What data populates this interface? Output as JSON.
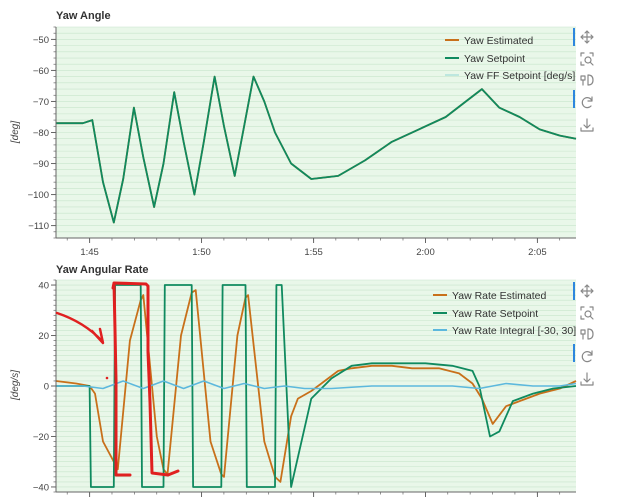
{
  "colors": {
    "plot_bg": "#e9f7e9",
    "grid": "#c8e6cc",
    "axis": "#666666",
    "orange": "#c8701a",
    "green": "#0f8a5f",
    "lightblue": "#5cb8dd",
    "ff_faint": "#bde7df",
    "red_annotation": "#e02020",
    "toolbar_accent": "#2e86de"
  },
  "toolbar": {
    "icons": [
      "pan-icon",
      "box-zoom-icon",
      "hover-icon",
      "reset-icon",
      "save-icon"
    ]
  },
  "chart_data": [
    {
      "type": "line",
      "title": "Yaw Angle",
      "ylabel": "[deg]",
      "xlabel": "",
      "x_tick_labels": [
        "1:45",
        "1:50",
        "1:55",
        "2:00",
        "2:05"
      ],
      "x_tick_minutes": [
        1.75,
        1.8333,
        1.9167,
        2.0,
        2.0833
      ],
      "xlim": [
        1.725,
        2.112
      ],
      "ylim": [
        -114,
        -46
      ],
      "y_ticks": [
        -50,
        -60,
        -70,
        -80,
        -90,
        -100,
        -110
      ],
      "legend_position": "top-right",
      "series": [
        {
          "name": "Yaw Estimated",
          "color": "#c8701a",
          "x": [
            1.725,
            1.745,
            1.752,
            1.76,
            1.768,
            1.775,
            1.783,
            1.79,
            1.798,
            1.805,
            1.813,
            1.82,
            1.828,
            1.835,
            1.843,
            1.85,
            1.858,
            1.865,
            1.872,
            1.88,
            1.888,
            1.9,
            1.915,
            1.935,
            1.955,
            1.975,
            1.995,
            2.015,
            2.03,
            2.042,
            2.055,
            2.07,
            2.085,
            2.1,
            2.112
          ],
          "y": [
            -77,
            -77,
            -76,
            -96,
            -109,
            -95,
            -72,
            -88,
            -104,
            -90,
            -67,
            -83,
            -100,
            -83,
            -62,
            -78,
            -94,
            -78,
            -62,
            -70,
            -80,
            -90,
            -95,
            -94,
            -89,
            -83,
            -79,
            -75,
            -70,
            -66,
            -72,
            -75,
            -79,
            -81,
            -82
          ]
        },
        {
          "name": "Yaw Setpoint",
          "color": "#0f8a5f",
          "x": [
            1.725,
            1.745,
            1.752,
            1.76,
            1.768,
            1.775,
            1.783,
            1.79,
            1.798,
            1.805,
            1.813,
            1.82,
            1.828,
            1.835,
            1.843,
            1.85,
            1.858,
            1.865,
            1.872,
            1.88,
            1.888,
            1.9,
            1.915,
            1.935,
            1.955,
            1.975,
            1.995,
            2.015,
            2.03,
            2.042,
            2.055,
            2.07,
            2.085,
            2.1,
            2.112
          ],
          "y": [
            -77,
            -77,
            -76,
            -96,
            -109,
            -95,
            -72,
            -88,
            -104,
            -90,
            -67,
            -83,
            -100,
            -83,
            -62,
            -78,
            -94,
            -78,
            -62,
            -70,
            -80,
            -90,
            -95,
            -94,
            -89,
            -83,
            -79,
            -75,
            -70,
            -66,
            -72,
            -75,
            -79,
            -81,
            -82
          ]
        },
        {
          "name": "Yaw FF Setpoint [deg/s]",
          "color": "#bde7df",
          "x": [],
          "y": []
        }
      ]
    },
    {
      "type": "line",
      "title": "Yaw Angular Rate",
      "ylabel": "[deg/s]",
      "xlabel": "",
      "xlim": [
        1.725,
        2.112
      ],
      "ylim": [
        -42,
        42
      ],
      "y_ticks": [
        40,
        20,
        0,
        -20,
        -40
      ],
      "legend_position": "top-right",
      "series": [
        {
          "name": "Yaw Rate Estimated",
          "color": "#c8701a",
          "x": [
            1.725,
            1.74,
            1.75,
            1.754,
            1.76,
            1.768,
            1.771,
            1.78,
            1.788,
            1.79,
            1.8,
            1.805,
            1.808,
            1.818,
            1.826,
            1.829,
            1.84,
            1.848,
            1.85,
            1.86,
            1.866,
            1.868,
            1.88,
            1.888,
            1.892,
            1.9,
            1.905,
            1.915,
            1.925,
            1.935,
            1.945,
            1.96,
            1.975,
            1.99,
            2.01,
            2.025,
            2.035,
            2.042,
            2.05,
            2.06,
            2.07,
            2.085,
            2.1,
            2.112
          ],
          "y": [
            2,
            1,
            0,
            -3,
            -22,
            -30,
            -33,
            18,
            34,
            36,
            -20,
            -33,
            -35,
            20,
            37,
            38,
            -22,
            -35,
            -36,
            20,
            35,
            36,
            -22,
            -36,
            -38,
            -12,
            -5,
            -2,
            2,
            6,
            7,
            8,
            8,
            7,
            7,
            5,
            1,
            -5,
            -15,
            -8,
            -6,
            -3,
            -1,
            2
          ]
        },
        {
          "name": "Yaw Rate Setpoint",
          "color": "#0f8a5f",
          "x": [
            1.725,
            1.75,
            1.751,
            1.768,
            1.769,
            1.788,
            1.789,
            1.805,
            1.806,
            1.826,
            1.827,
            1.848,
            1.849,
            1.866,
            1.867,
            1.888,
            1.889,
            1.893,
            1.9,
            1.915,
            1.93,
            1.945,
            1.96,
            1.98,
            2.0,
            2.02,
            2.035,
            2.04,
            2.048,
            2.055,
            2.065,
            2.08,
            2.095,
            2.112
          ],
          "y": [
            0,
            0,
            -40,
            -40,
            40,
            40,
            -40,
            -40,
            40,
            40,
            -40,
            -40,
            40,
            40,
            -40,
            -40,
            40,
            40,
            -40,
            -5,
            3,
            8,
            9,
            9,
            9,
            8,
            6,
            0,
            -20,
            -18,
            -6,
            -3,
            -1,
            0
          ]
        },
        {
          "name": "Yaw Rate Integral [-30, 30]",
          "color": "#5cb8dd",
          "x": [
            1.725,
            1.745,
            1.76,
            1.775,
            1.79,
            1.805,
            1.82,
            1.835,
            1.85,
            1.865,
            1.88,
            1.895,
            1.91,
            1.93,
            1.96,
            1.99,
            2.02,
            2.04,
            2.06,
            2.08,
            2.1,
            2.112
          ],
          "y": [
            0,
            0,
            -1,
            2,
            -1,
            2,
            -1,
            2,
            -1,
            1,
            -1,
            0,
            -1,
            -1,
            0,
            0,
            0,
            -1,
            1,
            0,
            0,
            1
          ]
        }
      ]
    }
  ]
}
